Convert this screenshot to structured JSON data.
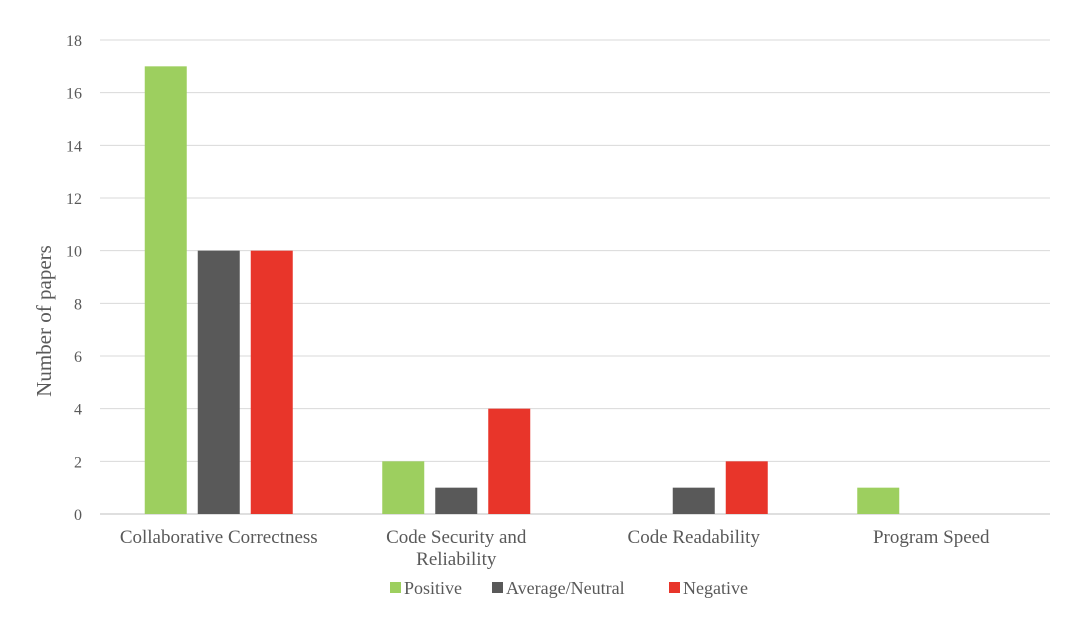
{
  "chart_data": {
    "type": "bar",
    "title": "",
    "xlabel": "",
    "ylabel": "Number of papers",
    "ylim": [
      0,
      18
    ],
    "yticks": [
      0,
      2,
      4,
      6,
      8,
      10,
      12,
      14,
      16,
      18
    ],
    "grid": true,
    "legend": "bottom",
    "categories": [
      [
        "Collaborative Correctness"
      ],
      [
        "Code Security and",
        "Reliability"
      ],
      [
        "Code Readability"
      ],
      [
        "Program Speed"
      ]
    ],
    "series": [
      {
        "name": "Positive",
        "color": "#9dcf5f",
        "values": [
          17,
          2,
          0,
          1
        ]
      },
      {
        "name": "Average/Neutral",
        "color": "#595959",
        "values": [
          10,
          1,
          1,
          0
        ]
      },
      {
        "name": "Negative",
        "color": "#e8352a",
        "values": [
          10,
          4,
          2,
          0
        ]
      }
    ]
  }
}
